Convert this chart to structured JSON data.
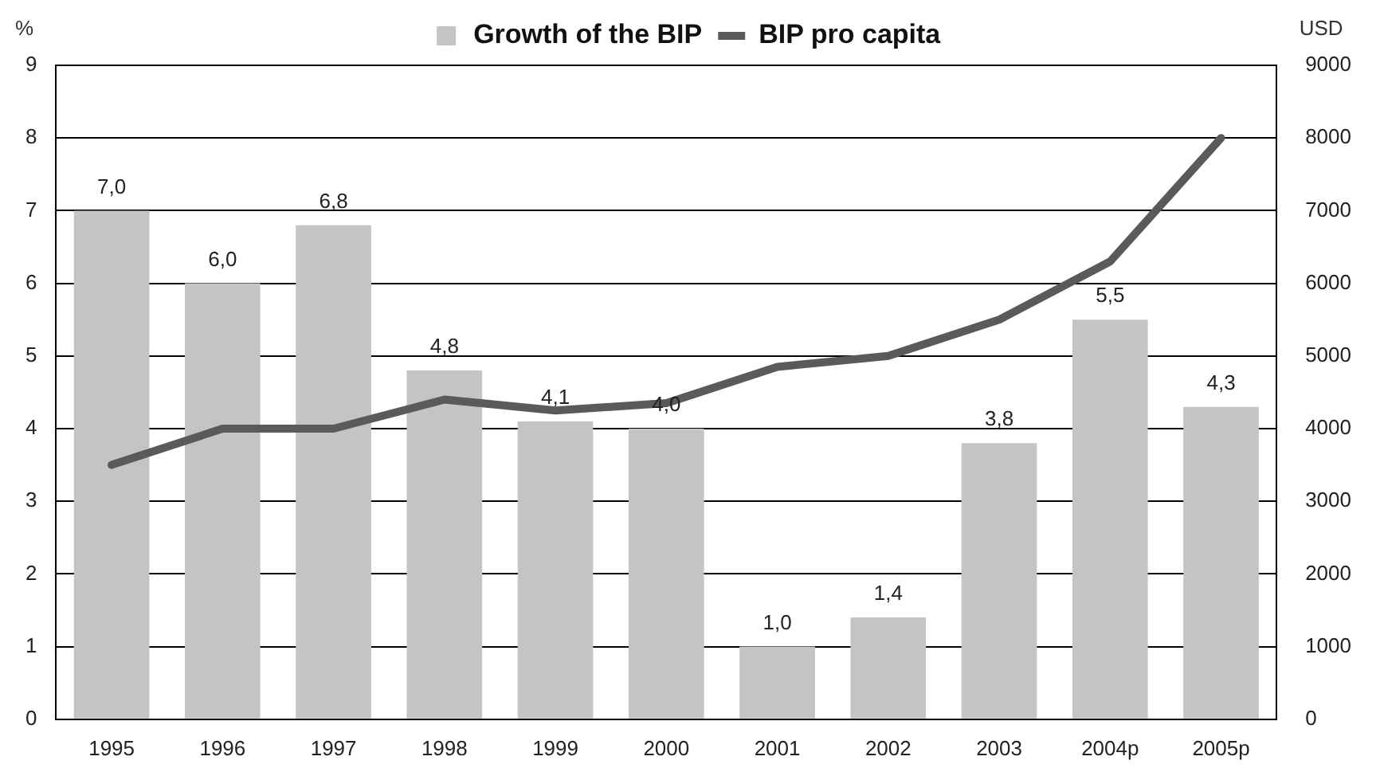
{
  "chart_data": {
    "type": "bar",
    "ylabel": "%",
    "y2label": "USD",
    "categories": [
      "1995",
      "1996",
      "1997",
      "1998",
      "1999",
      "2000",
      "2001",
      "2002",
      "2003",
      "2004p",
      "2005p"
    ],
    "series": [
      {
        "name": "Growth of the BIP",
        "color": "#c4c4c4",
        "values": [
          7.0,
          6.0,
          6.8,
          4.8,
          4.1,
          4.0,
          1.0,
          1.4,
          3.8,
          5.5,
          4.3
        ],
        "value_labels": [
          "7,0",
          "6,0",
          "6,8",
          "4,8",
          "4,1",
          "4,0",
          "1,0",
          "1,4",
          "3,8",
          "5,5",
          "4,3"
        ]
      },
      {
        "name": "BIP pro capita",
        "type": "line",
        "axis": "y2",
        "color": "#5a5a5a",
        "values": [
          3500,
          4000,
          4000,
          4400,
          4250,
          4350,
          4850,
          5000,
          5500,
          6300,
          8000
        ]
      }
    ],
    "ylim": [
      0,
      9
    ],
    "yticks": [
      0,
      1,
      2,
      3,
      4,
      5,
      6,
      7,
      8,
      9
    ],
    "y2lim": [
      0,
      9000
    ],
    "y2ticks": [
      0,
      1000,
      2000,
      3000,
      4000,
      5000,
      6000,
      7000,
      8000,
      9000
    ],
    "grid": "y",
    "legend": "top",
    "marker": "none"
  }
}
